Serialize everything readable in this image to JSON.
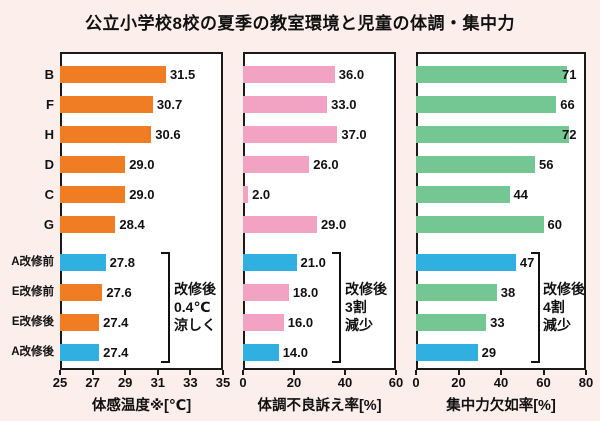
{
  "title": "公立小学校8校の夏季の教室環境と児童の体調・集中力",
  "highlight_color": "#2fb0e0",
  "highlight_rows": [
    6,
    9
  ],
  "chart_data": [
    {
      "type": "bar",
      "name": "perceived-temperature",
      "axis_title": "体感温度※[℃]",
      "categories": [
        "B",
        "F",
        "H",
        "D",
        "C",
        "G",
        "A改修前",
        "E改修前",
        "E改修後",
        "A改修後"
      ],
      "values": [
        31.5,
        30.7,
        30.6,
        29.0,
        29.0,
        28.4,
        27.8,
        27.6,
        27.4,
        27.4
      ],
      "labels": [
        "31.5",
        "30.7",
        "30.6",
        "29.0",
        "29.0",
        "28.4",
        "27.8",
        "27.6",
        "27.4",
        "27.4"
      ],
      "xlim": [
        25,
        35
      ],
      "ticks": [
        "25",
        "27",
        "29",
        "31",
        "33",
        "35"
      ],
      "bar_color": "#f07c24",
      "annotation_lines": [
        "改修後",
        "0.4℃",
        "涼しく"
      ]
    },
    {
      "type": "bar",
      "name": "physical-complaint-rate",
      "axis_title": "体調不良訴え率[%]",
      "categories": [
        "B",
        "F",
        "H",
        "D",
        "C",
        "G",
        "A改修前",
        "E改修前",
        "E改修後",
        "A改修後"
      ],
      "values": [
        36.0,
        33.0,
        37.0,
        26.0,
        2.0,
        29.0,
        21.0,
        18.0,
        16.0,
        14.0
      ],
      "labels": [
        "36.0",
        "33.0",
        "37.0",
        "26.0",
        "2.0",
        "29.0",
        "21.0",
        "18.0",
        "16.0",
        "14.0"
      ],
      "xlim": [
        0,
        60
      ],
      "ticks": [
        "0",
        "20",
        "40",
        "60"
      ],
      "bar_color": "#f2a3c3",
      "annotation_lines": [
        "改修後",
        "3割",
        "減少"
      ]
    },
    {
      "type": "bar",
      "name": "concentration-lack-rate",
      "axis_title": "集中力欠如率[%]",
      "categories": [
        "B",
        "F",
        "H",
        "D",
        "C",
        "G",
        "A改修前",
        "E改修前",
        "E改修後",
        "A改修後"
      ],
      "values": [
        71,
        66,
        72,
        56,
        44,
        60,
        47,
        38,
        33,
        29
      ],
      "labels": [
        "71",
        "66",
        "72",
        "56",
        "44",
        "60",
        "47",
        "38",
        "33",
        "29"
      ],
      "xlim": [
        0,
        80
      ],
      "ticks": [
        "0",
        "20",
        "40",
        "60",
        "80"
      ],
      "bar_color": "#74c693",
      "annotation_lines": [
        "改修後",
        "4割",
        "減少"
      ]
    }
  ]
}
